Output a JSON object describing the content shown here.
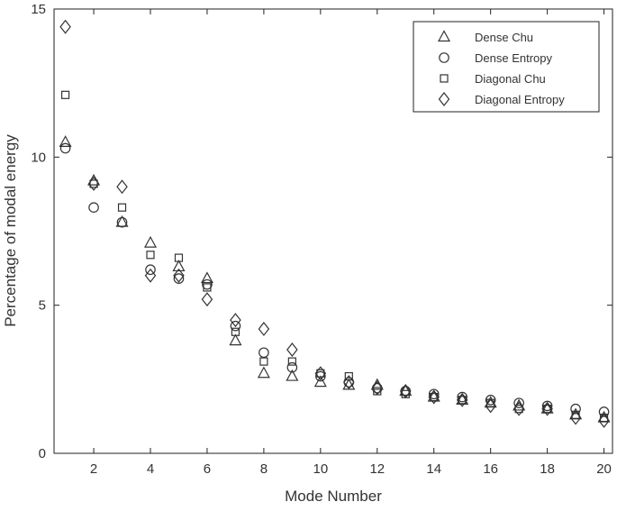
{
  "chart_data": {
    "type": "scatter",
    "title": "",
    "xlabel": "Mode Number",
    "ylabel": "Percentage of modal energy",
    "xlim": [
      0.6,
      20.3
    ],
    "ylim": [
      0,
      15
    ],
    "xticks": [
      2,
      4,
      6,
      8,
      10,
      12,
      14,
      16,
      18,
      20
    ],
    "yticks": [
      0,
      5,
      10,
      15
    ],
    "grid": false,
    "legend": "top-right",
    "x": [
      1,
      2,
      3,
      4,
      5,
      6,
      7,
      8,
      9,
      10,
      11,
      12,
      13,
      14,
      15,
      16,
      17,
      18,
      19,
      20
    ],
    "series": [
      {
        "name": "Dense Chu",
        "marker": "triangle",
        "values": [
          10.5,
          9.2,
          7.8,
          7.1,
          6.3,
          5.9,
          3.8,
          2.7,
          2.6,
          2.4,
          2.3,
          2.3,
          2.1,
          1.9,
          1.8,
          1.7,
          1.6,
          1.5,
          1.3,
          1.2
        ]
      },
      {
        "name": "Dense Entropy",
        "marker": "circle",
        "values": [
          10.3,
          8.3,
          7.8,
          6.2,
          5.9,
          5.7,
          4.3,
          3.4,
          2.9,
          2.6,
          2.4,
          2.2,
          2.1,
          2.0,
          1.9,
          1.8,
          1.7,
          1.6,
          1.5,
          1.4
        ]
      },
      {
        "name": "Diagonal Chu",
        "marker": "square",
        "values": [
          12.1,
          9.1,
          8.3,
          6.7,
          6.6,
          5.6,
          4.1,
          3.1,
          3.1,
          2.7,
          2.6,
          2.1,
          2.0,
          1.9,
          1.8,
          1.7,
          1.5,
          1.5,
          1.3,
          1.2
        ]
      },
      {
        "name": "Diagonal Entropy",
        "marker": "diamond",
        "values": [
          14.4,
          9.1,
          9.0,
          6.0,
          6.0,
          5.2,
          4.5,
          4.2,
          3.5,
          2.7,
          2.4,
          2.2,
          2.1,
          1.9,
          1.8,
          1.6,
          1.5,
          1.5,
          1.2,
          1.1
        ]
      }
    ]
  }
}
